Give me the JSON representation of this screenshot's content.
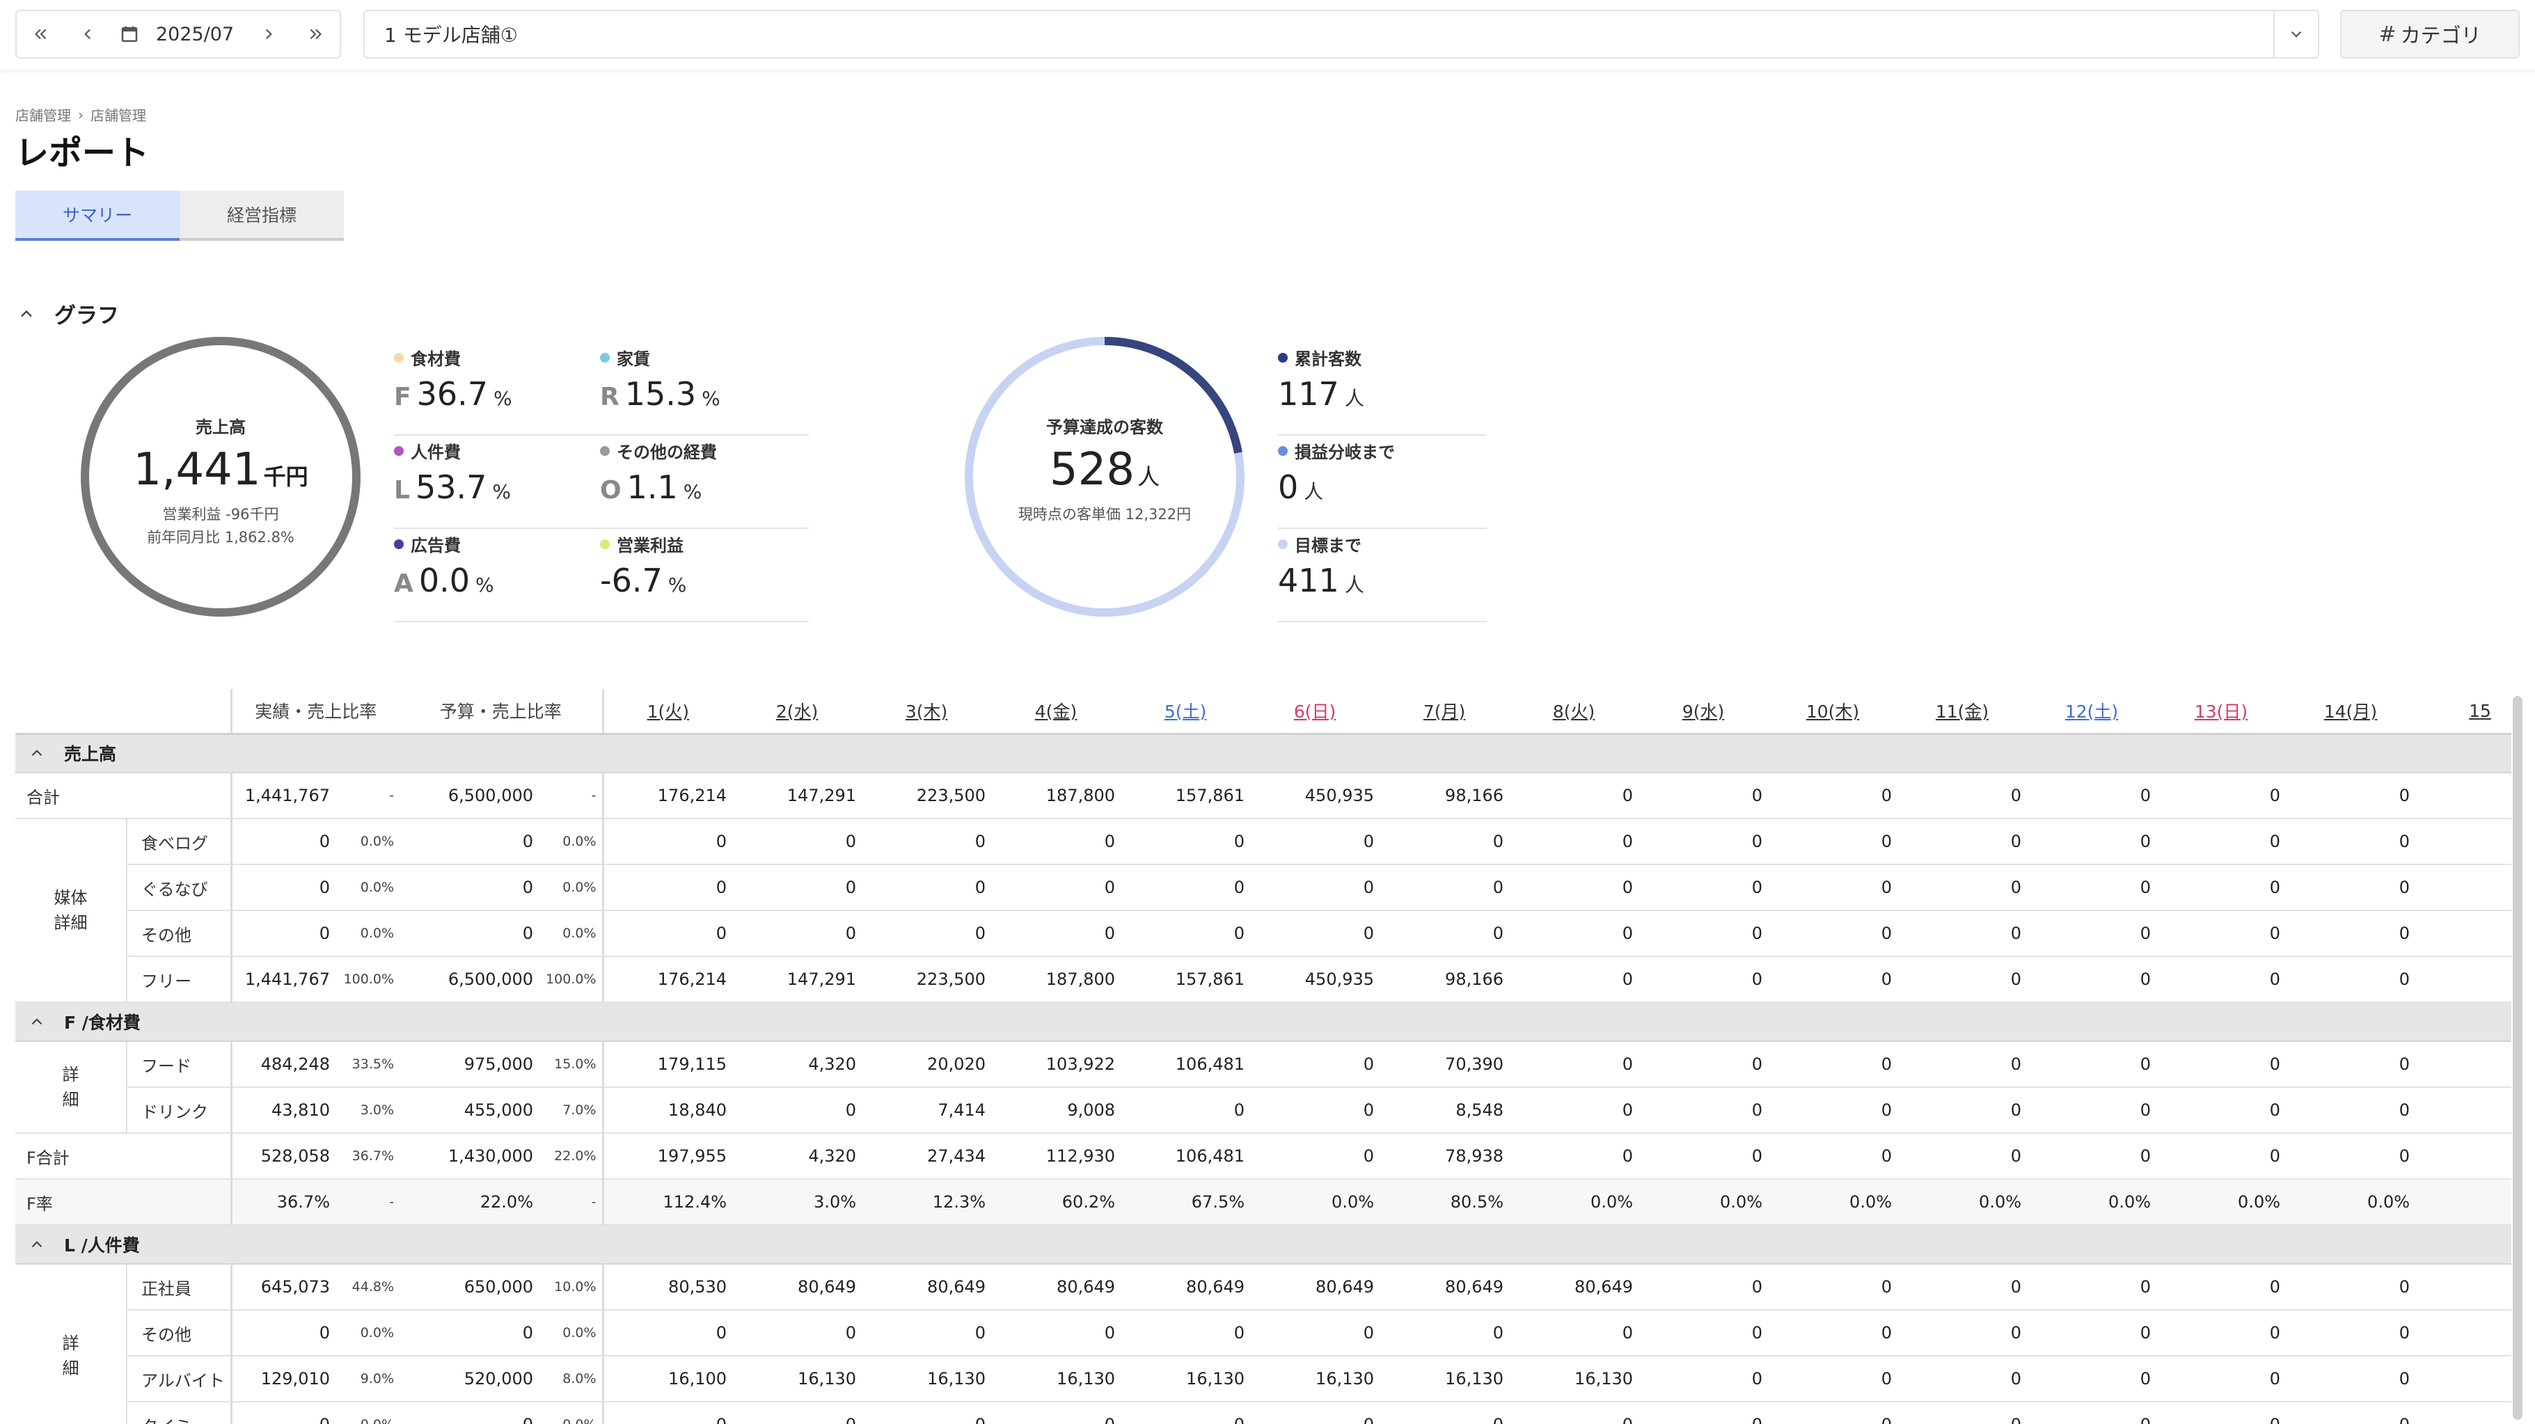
{
  "topbar": {
    "date": "2025/07",
    "store": "1 モデル店舗①",
    "category_label": "カテゴリ"
  },
  "breadcrumb": [
    "店舗管理",
    "店舗管理"
  ],
  "title": "レポート",
  "tabs": [
    {
      "label": "サマリー",
      "active": true
    },
    {
      "label": "経営指標",
      "active": false
    }
  ],
  "graph": {
    "section_title": "グラフ",
    "sales": {
      "label": "売上高",
      "value": "1,441",
      "unit": "千円",
      "profit": "営業利益 -96千円",
      "yoy": "前年同月比 1,862.8%"
    },
    "ratios": [
      {
        "label": "食材費",
        "letter": "F",
        "value": "36.7",
        "unit": "%",
        "color": "#f5d9a6"
      },
      {
        "label": "家賃",
        "letter": "R",
        "value": "15.3",
        "unit": "%",
        "color": "#7ec8e3"
      },
      {
        "label": "人件費",
        "letter": "L",
        "value": "53.7",
        "unit": "%",
        "color": "#b64fc8"
      },
      {
        "label": "その他の経費",
        "letter": "O",
        "value": "1.1",
        "unit": "%",
        "color": "#9a9a9a"
      },
      {
        "label": "広告費",
        "letter": "A",
        "value": "0.0",
        "unit": "%",
        "color": "#4a3aa8"
      },
      {
        "label": "営業利益",
        "letter": "",
        "value": "-6.7",
        "unit": "%",
        "color": "#d4ec7a"
      }
    ],
    "customers": {
      "label": "予算達成の客数",
      "value": "528",
      "unit": "人",
      "sub": "現時点の客単価 12,322円",
      "progress": 0.2216
    },
    "customer_stats": [
      {
        "label": "累計客数",
        "value": "117",
        "unit": "人",
        "color": "#2a3a8c"
      },
      {
        "label": "損益分岐まで",
        "value": "0",
        "unit": "人",
        "color": "#6a8fe0"
      },
      {
        "label": "目標まで",
        "value": "411",
        "unit": "人",
        "color": "#c8d4f4"
      }
    ],
    "colors": {
      "sales_ring": "#777777",
      "cust_track": "#c7d3f3",
      "cust_progress": "#36457e"
    }
  },
  "table": {
    "headers": {
      "actual": "実績・売上比率",
      "budget": "予算・売上比率"
    },
    "days": [
      {
        "label": "1(火)",
        "type": "weekday"
      },
      {
        "label": "2(水)",
        "type": "weekday"
      },
      {
        "label": "3(木)",
        "type": "weekday"
      },
      {
        "label": "4(金)",
        "type": "weekday"
      },
      {
        "label": "5(土)",
        "type": "sat"
      },
      {
        "label": "6(日)",
        "type": "sun"
      },
      {
        "label": "7(月)",
        "type": "weekday"
      },
      {
        "label": "8(火)",
        "type": "weekday"
      },
      {
        "label": "9(水)",
        "type": "weekday"
      },
      {
        "label": "10(木)",
        "type": "weekday"
      },
      {
        "label": "11(金)",
        "type": "weekday"
      },
      {
        "label": "12(土)",
        "type": "sat"
      },
      {
        "label": "13(日)",
        "type": "sun"
      },
      {
        "label": "14(月)",
        "type": "weekday"
      },
      {
        "label": "15",
        "type": "weekday"
      }
    ],
    "sections": [
      {
        "title": "売上高",
        "rows": [
          {
            "kind": "full",
            "label": "合計",
            "actual": "1,441,767",
            "actual_pct": "-",
            "budget": "6,500,000",
            "budget_pct": "-",
            "days": [
              "176,214",
              "147,291",
              "223,500",
              "187,800",
              "157,861",
              "450,935",
              "98,166",
              "0",
              "0",
              "0",
              "0",
              "0",
              "0",
              "0",
              ""
            ]
          },
          {
            "kind": "sub",
            "group": "媒体\n詳細",
            "group_span": 4,
            "label": "食べログ",
            "actual": "0",
            "actual_pct": "0.0%",
            "budget": "0",
            "budget_pct": "0.0%",
            "days": [
              "0",
              "0",
              "0",
              "0",
              "0",
              "0",
              "0",
              "0",
              "0",
              "0",
              "0",
              "0",
              "0",
              "0",
              ""
            ]
          },
          {
            "kind": "sub",
            "label": "ぐるなび",
            "actual": "0",
            "actual_pct": "0.0%",
            "budget": "0",
            "budget_pct": "0.0%",
            "days": [
              "0",
              "0",
              "0",
              "0",
              "0",
              "0",
              "0",
              "0",
              "0",
              "0",
              "0",
              "0",
              "0",
              "0",
              ""
            ]
          },
          {
            "kind": "sub",
            "label": "その他",
            "actual": "0",
            "actual_pct": "0.0%",
            "budget": "0",
            "budget_pct": "0.0%",
            "days": [
              "0",
              "0",
              "0",
              "0",
              "0",
              "0",
              "0",
              "0",
              "0",
              "0",
              "0",
              "0",
              "0",
              "0",
              ""
            ]
          },
          {
            "kind": "sub",
            "label": "フリー",
            "actual": "1,441,767",
            "actual_pct": "100.0%",
            "budget": "6,500,000",
            "budget_pct": "100.0%",
            "days": [
              "176,214",
              "147,291",
              "223,500",
              "187,800",
              "157,861",
              "450,935",
              "98,166",
              "0",
              "0",
              "0",
              "0",
              "0",
              "0",
              "0",
              ""
            ]
          }
        ]
      },
      {
        "title": "F /食材費",
        "rows": [
          {
            "kind": "sub2",
            "group": "詳\n細",
            "group_span": 2,
            "label": "フード",
            "actual": "484,248",
            "actual_pct": "33.5%",
            "budget": "975,000",
            "budget_pct": "15.0%",
            "days": [
              "179,115",
              "4,320",
              "20,020",
              "103,922",
              "106,481",
              "0",
              "70,390",
              "0",
              "0",
              "0",
              "0",
              "0",
              "0",
              "0",
              ""
            ]
          },
          {
            "kind": "sub2",
            "label": "ドリンク",
            "actual": "43,810",
            "actual_pct": "3.0%",
            "budget": "455,000",
            "budget_pct": "7.0%",
            "days": [
              "18,840",
              "0",
              "7,414",
              "9,008",
              "0",
              "0",
              "8,548",
              "0",
              "0",
              "0",
              "0",
              "0",
              "0",
              "0",
              ""
            ]
          },
          {
            "kind": "full",
            "label": "F合計",
            "actual": "528,058",
            "actual_pct": "36.7%",
            "budget": "1,430,000",
            "budget_pct": "22.0%",
            "days": [
              "197,955",
              "4,320",
              "27,434",
              "112,930",
              "106,481",
              "0",
              "78,938",
              "0",
              "0",
              "0",
              "0",
              "0",
              "0",
              "0",
              ""
            ]
          },
          {
            "kind": "full",
            "shade": true,
            "label": "F率",
            "actual": "36.7%",
            "actual_pct": "-",
            "budget": "22.0%",
            "budget_pct": "-",
            "days": [
              "112.4%",
              "3.0%",
              "12.3%",
              "60.2%",
              "67.5%",
              "0.0%",
              "80.5%",
              "0.0%",
              "0.0%",
              "0.0%",
              "0.0%",
              "0.0%",
              "0.0%",
              "0.0%",
              ""
            ]
          }
        ]
      },
      {
        "title": "L /人件費",
        "rows": [
          {
            "kind": "sub2",
            "group": "詳\n細",
            "group_span": 4,
            "label": "正社員",
            "actual": "645,073",
            "actual_pct": "44.8%",
            "budget": "650,000",
            "budget_pct": "10.0%",
            "days": [
              "80,530",
              "80,649",
              "80,649",
              "80,649",
              "80,649",
              "80,649",
              "80,649",
              "80,649",
              "0",
              "0",
              "0",
              "0",
              "0",
              "0",
              ""
            ]
          },
          {
            "kind": "sub2",
            "label": "その他",
            "actual": "0",
            "actual_pct": "0.0%",
            "budget": "0",
            "budget_pct": "0.0%",
            "days": [
              "0",
              "0",
              "0",
              "0",
              "0",
              "0",
              "0",
              "0",
              "0",
              "0",
              "0",
              "0",
              "0",
              "0",
              ""
            ]
          },
          {
            "kind": "sub2",
            "label": "アルバイト",
            "actual": "129,010",
            "actual_pct": "9.0%",
            "budget": "520,000",
            "budget_pct": "8.0%",
            "days": [
              "16,100",
              "16,130",
              "16,130",
              "16,130",
              "16,130",
              "16,130",
              "16,130",
              "16,130",
              "0",
              "0",
              "0",
              "0",
              "0",
              "0",
              ""
            ]
          },
          {
            "kind": "sub2",
            "label": "タイミー",
            "actual": "0",
            "actual_pct": "0.0%",
            "budget": "0",
            "budget_pct": "0.0%",
            "days": [
              "0",
              "0",
              "0",
              "0",
              "0",
              "0",
              "0",
              "0",
              "0",
              "0",
              "0",
              "0",
              "0",
              "0",
              ""
            ]
          }
        ]
      }
    ]
  }
}
